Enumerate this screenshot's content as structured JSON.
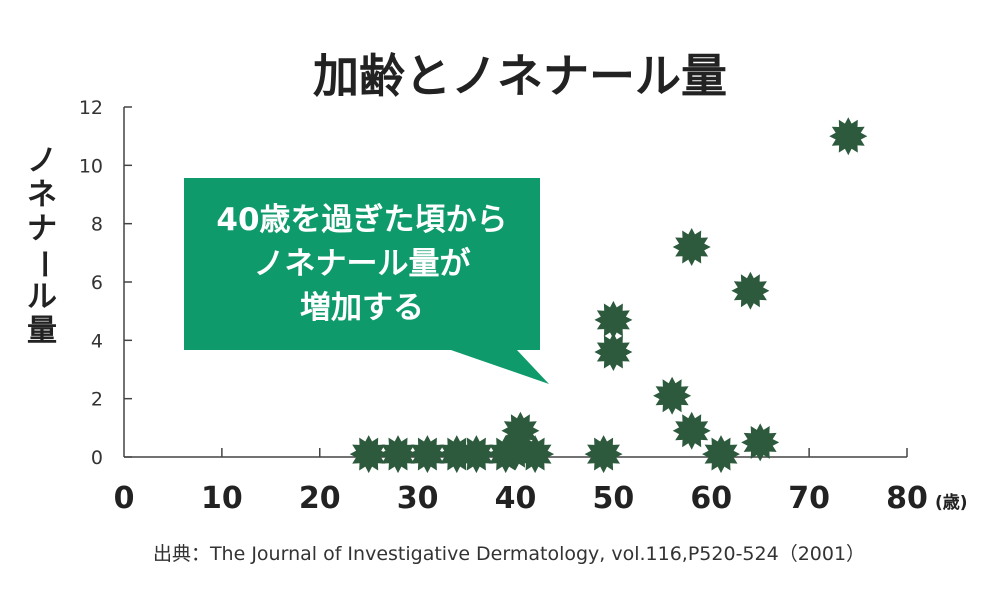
{
  "chart_data": {
    "type": "scatter",
    "title": "加齢とノネナール量",
    "ylabel": "ノネナール量",
    "x_unit": "(歳)",
    "xlim": [
      0,
      80
    ],
    "ylim": [
      0,
      12
    ],
    "x_ticks": [
      "0",
      "10",
      "20",
      "30",
      "40",
      "50",
      "60",
      "70",
      "80"
    ],
    "y_ticks": [
      "0",
      "2",
      "4",
      "6",
      "8",
      "10",
      "12"
    ],
    "grid": false,
    "marker_color": "#2d5a3d",
    "points": [
      {
        "x": 25,
        "y": 0.1
      },
      {
        "x": 28,
        "y": 0.1
      },
      {
        "x": 31,
        "y": 0.1
      },
      {
        "x": 34,
        "y": 0.1
      },
      {
        "x": 36,
        "y": 0.1
      },
      {
        "x": 39,
        "y": 0.1
      },
      {
        "x": 40,
        "y": 0.2
      },
      {
        "x": 40.5,
        "y": 0.9
      },
      {
        "x": 42,
        "y": 0.1
      },
      {
        "x": 49,
        "y": 0.1
      },
      {
        "x": 50,
        "y": 3.6
      },
      {
        "x": 50,
        "y": 4.7
      },
      {
        "x": 56,
        "y": 2.1
      },
      {
        "x": 58,
        "y": 0.9
      },
      {
        "x": 58,
        "y": 7.2
      },
      {
        "x": 61,
        "y": 0.1
      },
      {
        "x": 64,
        "y": 5.7
      },
      {
        "x": 65,
        "y": 0.5
      },
      {
        "x": 74,
        "y": 11
      }
    ],
    "annotation": {
      "lines": [
        "40歳を過ぎた頃から",
        "ノネナール量が",
        "増加する"
      ],
      "color": "#0f9a6c"
    }
  },
  "source": "出典：The Journal of Investigative Dermatology, vol.116,P520-524（2001）"
}
